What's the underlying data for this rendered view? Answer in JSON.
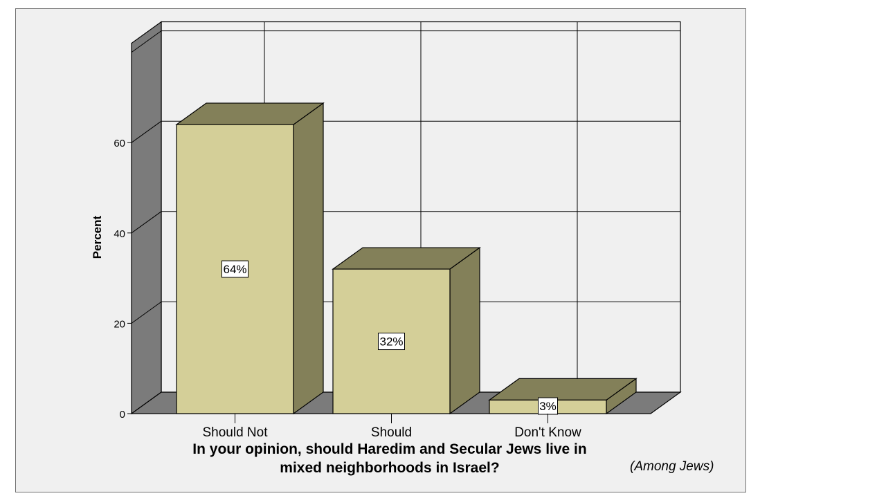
{
  "chart_data": {
    "type": "bar",
    "style": "3d",
    "categories": [
      "Should Not",
      "Should",
      "Don't Know"
    ],
    "values": [
      64,
      32,
      3
    ],
    "value_labels": [
      "64%",
      "32%",
      "3%"
    ],
    "xlabel": "In your opinion, should Haredim and Secular Jews live in\nmixed neighborhoods in Israel?",
    "ylabel": "Percent",
    "note": "(Among Jews)",
    "yticks": [
      0,
      20,
      40,
      60
    ],
    "ylim": [
      0,
      82
    ],
    "grid": true,
    "colors": {
      "bar_front": "#d4cf98",
      "bar_side": "#838059",
      "bar_top": "#838059",
      "wall": "#f0f0f0",
      "side_wall": "#7b7b7b",
      "floor": "#7b7b7b",
      "frame_bg": "#f0f0f0"
    }
  }
}
